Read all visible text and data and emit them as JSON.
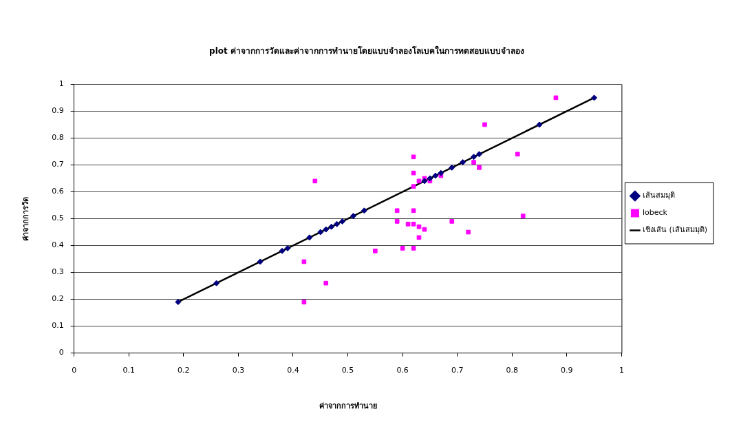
{
  "chart_data": {
    "type": "scatter",
    "title": "plot ค่าจากการวัดและค่าจากการทำนายโดยแบบจำลองโลเบคในการทดสอบแบบจำลอง",
    "xlabel": "ค่าจากการทำนาย",
    "ylabel": "ค่าจากการวัด",
    "xlim": [
      0,
      1
    ],
    "xticks": [
      0,
      0.1,
      0.2,
      0.3,
      0.4,
      0.5,
      0.6,
      0.7,
      0.8,
      0.9,
      1
    ],
    "ylim": [
      0,
      1
    ],
    "yticks": [
      0,
      0.1,
      0.2,
      0.3,
      0.4,
      0.5,
      0.6,
      0.7,
      0.8,
      0.9,
      1
    ],
    "grid": "y",
    "legend": "right",
    "series": [
      {
        "name": "เส้นสมมุติ",
        "type": "scatter",
        "marker": "diamond",
        "color": "#000080",
        "x": [
          0.19,
          0.26,
          0.34,
          0.38,
          0.39,
          0.43,
          0.45,
          0.46,
          0.47,
          0.48,
          0.49,
          0.51,
          0.53,
          0.64,
          0.65,
          0.66,
          0.67,
          0.69,
          0.71,
          0.73,
          0.74,
          0.85,
          0.95
        ],
        "values": [
          0.19,
          0.26,
          0.34,
          0.38,
          0.39,
          0.43,
          0.45,
          0.46,
          0.47,
          0.48,
          0.49,
          0.51,
          0.53,
          0.64,
          0.65,
          0.66,
          0.67,
          0.69,
          0.71,
          0.73,
          0.74,
          0.85,
          0.95
        ]
      },
      {
        "name": "lobeck",
        "type": "scatter",
        "marker": "square",
        "color": "#ff00ff",
        "x": [
          0.88,
          0.75,
          0.62,
          0.81,
          0.73,
          0.74,
          0.62,
          0.44,
          0.63,
          0.64,
          0.65,
          0.67,
          0.62,
          0.59,
          0.62,
          0.59,
          0.61,
          0.62,
          0.63,
          0.64,
          0.69,
          0.82,
          0.72,
          0.63,
          0.55,
          0.6,
          0.62,
          0.42,
          0.46,
          0.42
        ],
        "values": [
          0.95,
          0.85,
          0.73,
          0.74,
          0.71,
          0.69,
          0.67,
          0.64,
          0.64,
          0.65,
          0.64,
          0.66,
          0.62,
          0.53,
          0.53,
          0.49,
          0.48,
          0.48,
          0.47,
          0.46,
          0.49,
          0.51,
          0.45,
          0.43,
          0.38,
          0.39,
          0.39,
          0.34,
          0.26,
          0.19
        ]
      },
      {
        "name": "เชิงเส้น (เส้นสมมุติ)",
        "type": "line",
        "marker": "none",
        "line_style": "solid",
        "color": "#000000",
        "x": [
          0.19,
          0.95
        ],
        "values": [
          0.19,
          0.95
        ]
      }
    ]
  }
}
